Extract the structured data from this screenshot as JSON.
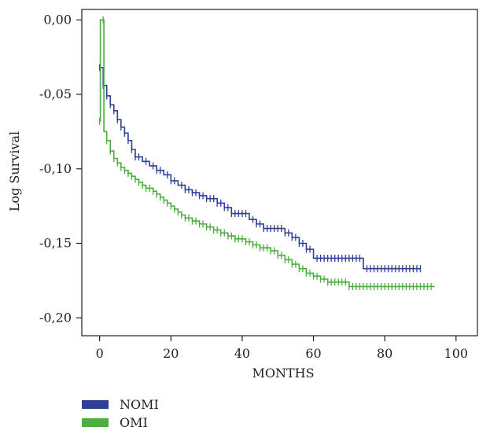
{
  "chart_data": {
    "type": "line",
    "step": true,
    "xlabel": "MONTHS",
    "ylabel": "Log Survival",
    "xlim": [
      -5,
      106
    ],
    "ylim": [
      -0.212,
      0.007
    ],
    "x_ticks": [
      0,
      20,
      40,
      60,
      80,
      100
    ],
    "x_tick_labels": [
      "0",
      "20",
      "40",
      "60",
      "80",
      "100"
    ],
    "y_ticks": [
      0.0,
      -0.05,
      -0.1,
      -0.15,
      -0.2
    ],
    "y_tick_labels": [
      "0,00",
      "-0,05",
      "-0,10",
      "-0,15",
      "-0,20"
    ],
    "grid": false,
    "legend_position": "bottom-left",
    "series": [
      {
        "name": "NOMI",
        "color": "#2e3f96",
        "points": [
          [
            0,
            -0.032
          ],
          [
            1,
            -0.044
          ],
          [
            2,
            -0.051
          ],
          [
            3,
            -0.057
          ],
          [
            4,
            -0.061
          ],
          [
            5,
            -0.067
          ],
          [
            6,
            -0.072
          ],
          [
            7,
            -0.076
          ],
          [
            8,
            -0.081
          ],
          [
            9,
            -0.087
          ],
          [
            10,
            -0.092
          ],
          [
            12,
            -0.095
          ],
          [
            14,
            -0.098
          ],
          [
            16,
            -0.101
          ],
          [
            18,
            -0.104
          ],
          [
            20,
            -0.108
          ],
          [
            22,
            -0.111
          ],
          [
            24,
            -0.114
          ],
          [
            26,
            -0.116
          ],
          [
            28,
            -0.118
          ],
          [
            30,
            -0.12
          ],
          [
            33,
            -0.123
          ],
          [
            35,
            -0.126
          ],
          [
            37,
            -0.13
          ],
          [
            42,
            -0.134
          ],
          [
            44,
            -0.137
          ],
          [
            46,
            -0.14
          ],
          [
            52,
            -0.143
          ],
          [
            54,
            -0.146
          ],
          [
            56,
            -0.15
          ],
          [
            58,
            -0.154
          ],
          [
            60,
            -0.16
          ],
          [
            74,
            -0.167
          ],
          [
            90,
            -0.167
          ]
        ],
        "censor_x": [
          0,
          1,
          2,
          3,
          4,
          5,
          6,
          7,
          8,
          9,
          10,
          11,
          13,
          15,
          16,
          17,
          19,
          20,
          21,
          23,
          24,
          25,
          26,
          27,
          28,
          29,
          30,
          31,
          32,
          33,
          34,
          35,
          36,
          37,
          38,
          39,
          40,
          41,
          43,
          44,
          45,
          46,
          47,
          48,
          49,
          50,
          51,
          52,
          53,
          54,
          55,
          56,
          57,
          58,
          59,
          61,
          62,
          63,
          64,
          65,
          66,
          67,
          68,
          69,
          70,
          71,
          72,
          73,
          75,
          76,
          77,
          78,
          79,
          80,
          81,
          82,
          83,
          84,
          85,
          86,
          87,
          88,
          89,
          90
        ]
      },
      {
        "name": "OMI",
        "color": "#4aaf3c",
        "points": [
          [
            0,
            -0.068
          ],
          [
            0.2,
            0.0
          ],
          [
            1.2,
            -0.075
          ],
          [
            2,
            -0.081
          ],
          [
            3,
            -0.088
          ],
          [
            4,
            -0.093
          ],
          [
            5,
            -0.096
          ],
          [
            6,
            -0.099
          ],
          [
            7,
            -0.101
          ],
          [
            8,
            -0.103
          ],
          [
            9,
            -0.105
          ],
          [
            10,
            -0.107
          ],
          [
            11,
            -0.109
          ],
          [
            12,
            -0.111
          ],
          [
            13,
            -0.113
          ],
          [
            15,
            -0.115
          ],
          [
            16,
            -0.117
          ],
          [
            17,
            -0.119
          ],
          [
            18,
            -0.121
          ],
          [
            19,
            -0.123
          ],
          [
            20,
            -0.125
          ],
          [
            21,
            -0.127
          ],
          [
            22,
            -0.129
          ],
          [
            23,
            -0.131
          ],
          [
            24,
            -0.133
          ],
          [
            26,
            -0.135
          ],
          [
            28,
            -0.137
          ],
          [
            30,
            -0.139
          ],
          [
            32,
            -0.141
          ],
          [
            34,
            -0.143
          ],
          [
            36,
            -0.145
          ],
          [
            38,
            -0.147
          ],
          [
            41,
            -0.149
          ],
          [
            43,
            -0.151
          ],
          [
            45,
            -0.153
          ],
          [
            48,
            -0.155
          ],
          [
            50,
            -0.158
          ],
          [
            52,
            -0.161
          ],
          [
            54,
            -0.164
          ],
          [
            56,
            -0.167
          ],
          [
            58,
            -0.17
          ],
          [
            60,
            -0.172
          ],
          [
            62,
            -0.174
          ],
          [
            64,
            -0.176
          ],
          [
            70,
            -0.179
          ],
          [
            94,
            -0.179
          ]
        ],
        "censor_x": [
          0,
          1,
          2,
          3,
          4,
          5,
          6,
          7,
          8,
          9,
          10,
          11,
          12,
          13,
          14,
          15,
          16,
          17,
          18,
          19,
          20,
          21,
          22,
          23,
          24,
          25,
          26,
          27,
          28,
          29,
          30,
          31,
          32,
          33,
          34,
          35,
          36,
          37,
          38,
          39,
          40,
          41,
          42,
          43,
          44,
          45,
          46,
          47,
          48,
          49,
          50,
          51,
          52,
          53,
          54,
          55,
          56,
          57,
          58,
          59,
          60,
          61,
          62,
          63,
          64,
          65,
          66,
          67,
          68,
          69,
          70,
          71,
          72,
          73,
          74,
          75,
          76,
          77,
          78,
          79,
          80,
          81,
          82,
          83,
          84,
          85,
          86,
          87,
          88,
          89,
          90,
          91,
          92,
          93
        ]
      }
    ]
  }
}
